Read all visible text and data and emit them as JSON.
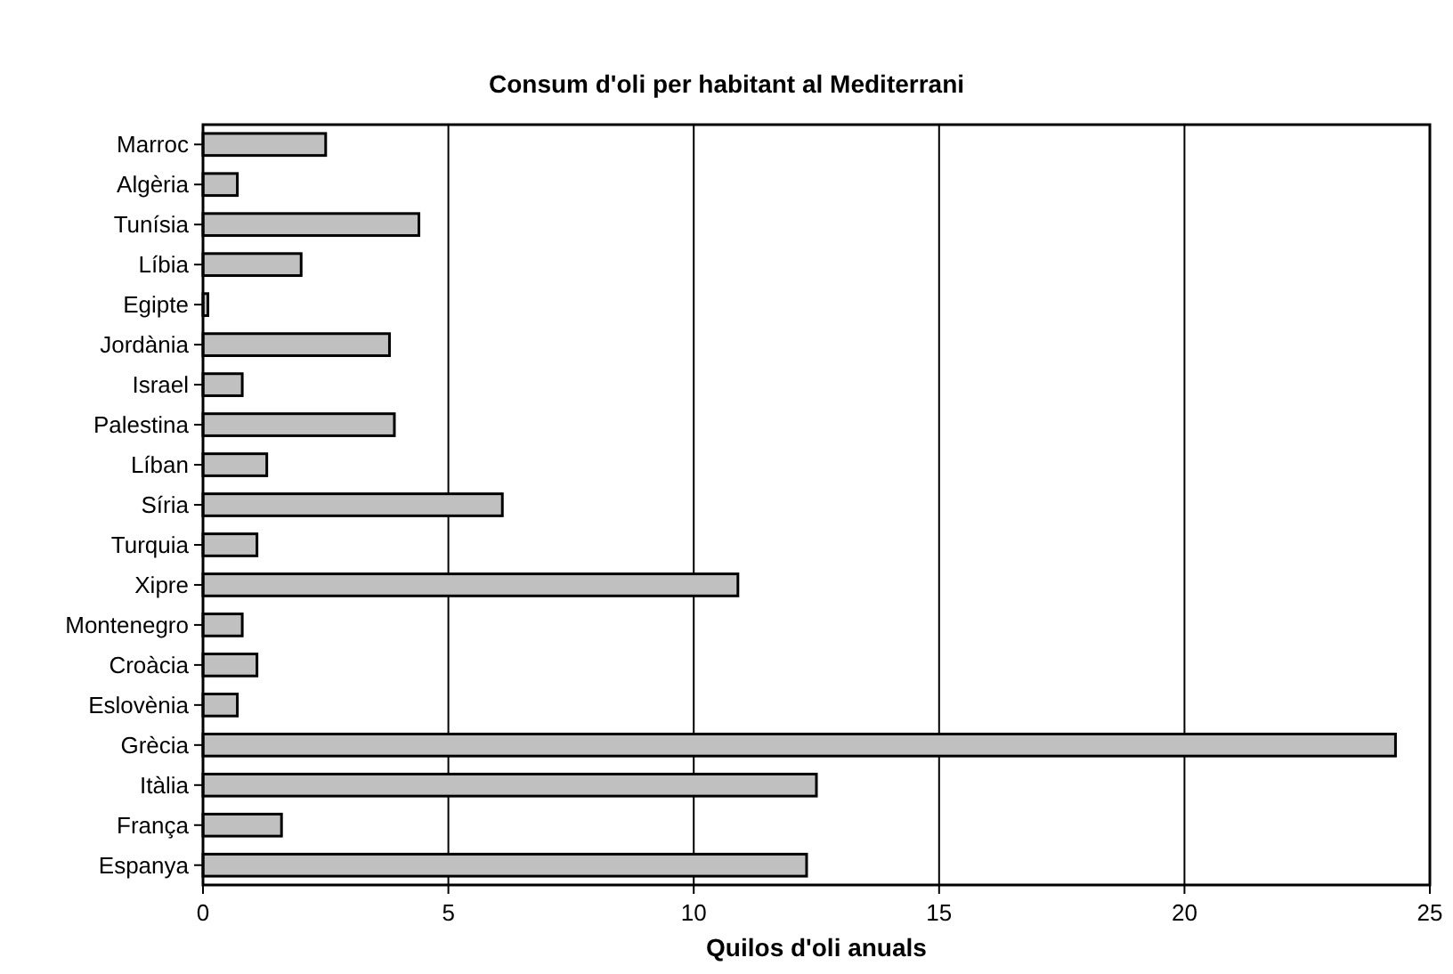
{
  "chart_data": {
    "type": "bar",
    "orientation": "horizontal",
    "title": "Consum d'oli per habitant al Mediterrani",
    "xlabel": "Quilos d'oli anuals",
    "categories": [
      "Marroc",
      "Algèria",
      "Tunísia",
      "Líbia",
      "Egipte",
      "Jordània",
      "Israel",
      "Palestina",
      "Líban",
      "Síria",
      "Turquia",
      "Xipre",
      "Montenegro",
      "Croàcia",
      "Eslovènia",
      "Grècia",
      "Itàlia",
      "França",
      "Espanya"
    ],
    "values": [
      2.5,
      0.7,
      4.4,
      2.0,
      0.1,
      3.8,
      0.8,
      3.9,
      1.3,
      6.1,
      1.1,
      10.9,
      0.8,
      1.1,
      0.7,
      24.3,
      12.5,
      1.6,
      12.3
    ],
    "color": "#c0c0c0",
    "xlim": [
      0,
      25
    ],
    "xticks": [
      0,
      5,
      10,
      15,
      20,
      25
    ],
    "grid": "x"
  }
}
